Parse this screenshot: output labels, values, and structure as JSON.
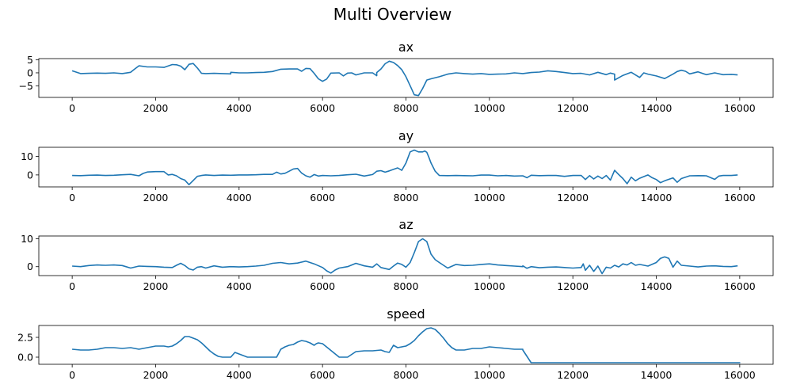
{
  "figure": {
    "title": "Multi Overview"
  },
  "style": {
    "line_color": "#1f77b4",
    "axes_color": "#000000",
    "background": "#ffffff"
  },
  "chart_data": [
    {
      "type": "line",
      "title": "ax",
      "xlabel": "",
      "ylabel": "",
      "xlim": [
        -800,
        16800
      ],
      "ylim": [
        -9.5,
        5.5
      ],
      "xticks": [
        0,
        2000,
        4000,
        6000,
        8000,
        10000,
        12000,
        14000,
        16000
      ],
      "yticks": [
        5,
        0,
        -5
      ],
      "ytick_labels": [
        "5",
        "0",
        "−5"
      ],
      "grid": false,
      "series": [
        {
          "x": [
            0,
            200,
            400,
            600,
            800,
            1000,
            1200,
            1400,
            1500,
            1600,
            1800,
            2000,
            2200,
            2400,
            2500,
            2600,
            2700,
            2800,
            2900,
            3000,
            3100,
            3200,
            3400,
            3600,
            3800,
            3800,
            4000,
            4200,
            4400,
            4600,
            4800,
            5000,
            5200,
            5400,
            5500,
            5600,
            5700,
            5800,
            5900,
            6000,
            6100,
            6200,
            6400,
            6500,
            6600,
            6700,
            6800,
            7000,
            7200,
            7300,
            7300,
            7400,
            7500,
            7600,
            7700,
            7800,
            7900,
            8000,
            8100,
            8200,
            8300,
            8400,
            8500,
            8600,
            8800,
            9000,
            9200,
            9400,
            9600,
            9800,
            10000,
            10200,
            10400,
            10600,
            10800,
            11000,
            11200,
            11400,
            11600,
            11800,
            12000,
            12200,
            12400,
            12600,
            12800,
            12900,
            13000,
            13000,
            13200,
            13400,
            13600,
            13700,
            13800,
            14000,
            14200,
            14400,
            14500,
            14600,
            14700,
            14800,
            15000,
            15200,
            15400,
            15600,
            15800,
            15950
          ],
          "y": [
            0.8,
            -0.3,
            -0.2,
            -0.1,
            -0.2,
            0,
            -0.3,
            0.2,
            1.5,
            2.7,
            2.3,
            2.3,
            2.1,
            3.2,
            3.1,
            2.6,
            1.2,
            3.3,
            3.6,
            1.9,
            -0.2,
            -0.3,
            -0.2,
            -0.3,
            -0.4,
            0.2,
            0,
            0,
            0.1,
            0.2,
            0.5,
            1.4,
            1.5,
            1.5,
            0.6,
            1.7,
            1.6,
            -0.2,
            -2.3,
            -3.3,
            -2.4,
            -0.1,
            0,
            -1.2,
            -0.1,
            0,
            -0.8,
            0,
            0,
            -1.1,
            0.1,
            1.5,
            3.5,
            4.5,
            4.0,
            2.8,
            1.2,
            -1.5,
            -5,
            -8.5,
            -8.8,
            -6,
            -2.8,
            -2.3,
            -1.5,
            -0.5,
            0,
            -0.3,
            -0.5,
            -0.3,
            -0.6,
            -0.5,
            -0.4,
            0,
            -0.3,
            0.1,
            0.3,
            0.8,
            0.5,
            0.1,
            -0.3,
            -0.2,
            -0.8,
            0.2,
            -0.7,
            -0.1,
            -0.5,
            -2.8,
            -1.0,
            0.2,
            -1.8,
            0,
            -0.5,
            -1.2,
            -2.2,
            -0.5,
            0.5,
            1.0,
            0.6,
            -0.4,
            0.4,
            -0.7,
            0,
            -0.7,
            -0.6,
            -0.8
          ]
        }
      ]
    },
    {
      "type": "line",
      "title": "ay",
      "xlabel": "",
      "ylabel": "",
      "xlim": [
        -800,
        16800
      ],
      "ylim": [
        -6.5,
        15
      ],
      "xticks": [
        0,
        2000,
        4000,
        6000,
        8000,
        10000,
        12000,
        14000,
        16000
      ],
      "yticks": [
        10,
        0
      ],
      "ytick_labels": [
        "10",
        "0"
      ],
      "grid": false,
      "series": [
        {
          "x": [
            0,
            200,
            400,
            600,
            800,
            1000,
            1200,
            1400,
            1600,
            1700,
            1800,
            2000,
            2200,
            2300,
            2400,
            2500,
            2600,
            2700,
            2800,
            2900,
            3000,
            3100,
            3200,
            3400,
            3600,
            3800,
            4000,
            4200,
            4400,
            4600,
            4800,
            4900,
            5000,
            5100,
            5200,
            5300,
            5400,
            5500,
            5600,
            5700,
            5800,
            5900,
            6000,
            6200,
            6400,
            6600,
            6800,
            7000,
            7200,
            7300,
            7400,
            7500,
            7600,
            7700,
            7800,
            7900,
            8000,
            8100,
            8200,
            8300,
            8400,
            8450,
            8500,
            8550,
            8600,
            8700,
            8800,
            9000,
            9200,
            9400,
            9600,
            9800,
            10000,
            10200,
            10400,
            10600,
            10800,
            10900,
            11000,
            11200,
            11400,
            11600,
            11800,
            12000,
            12200,
            12300,
            12400,
            12500,
            12600,
            12700,
            12800,
            12900,
            13000,
            13100,
            13200,
            13300,
            13400,
            13500,
            13600,
            13800,
            13900,
            14000,
            14100,
            14200,
            14400,
            14500,
            14600,
            14800,
            15000,
            15200,
            15400,
            15500,
            15600,
            15800,
            15950
          ],
          "y": [
            -0.3,
            -0.4,
            -0.2,
            -0.1,
            -0.3,
            -0.2,
            0.1,
            0.3,
            -0.5,
            0.8,
            1.6,
            1.8,
            1.8,
            0,
            0.3,
            -0.5,
            -2.0,
            -2.8,
            -5.3,
            -3.0,
            -0.8,
            -0.3,
            0,
            -0.3,
            -0.1,
            -0.2,
            0,
            0,
            0.1,
            0.3,
            0.3,
            1.5,
            0.5,
            0.9,
            2.0,
            3.2,
            3.5,
            1.0,
            -0.5,
            -1.2,
            0.2,
            -0.6,
            -0.3,
            -0.5,
            -0.3,
            0.1,
            0.4,
            -0.6,
            0.2,
            2.0,
            2.3,
            1.5,
            2.2,
            3.0,
            3.8,
            2.5,
            6.5,
            12.5,
            13.5,
            12.5,
            12.5,
            13.0,
            12.3,
            9.5,
            6.5,
            2.0,
            -0.3,
            -0.4,
            -0.3,
            -0.4,
            -0.5,
            -0.1,
            -0.1,
            -0.5,
            -0.3,
            -0.6,
            -0.5,
            -1.5,
            -0.2,
            -0.4,
            -0.3,
            -0.3,
            -0.8,
            -0.3,
            -0.3,
            -2.5,
            -0.4,
            -2.2,
            -0.6,
            -2.0,
            -0.3,
            -2.8,
            2.5,
            0.2,
            -2.0,
            -4.8,
            -1.2,
            -3.2,
            -1.8,
            0,
            -1.5,
            -2.5,
            -4.2,
            -3.2,
            -1.6,
            -4.0,
            -2.0,
            -0.5,
            -0.4,
            -0.5,
            -2.4,
            -0.6,
            -0.3,
            -0.3,
            0
          ]
        }
      ]
    },
    {
      "type": "line",
      "title": "az",
      "xlabel": "",
      "ylabel": "",
      "xlim": [
        -800,
        16800
      ],
      "ylim": [
        -3.2,
        11
      ],
      "xticks": [
        0,
        2000,
        4000,
        6000,
        8000,
        10000,
        12000,
        14000,
        16000
      ],
      "yticks": [
        10,
        0
      ],
      "ytick_labels": [
        "10",
        "0"
      ],
      "grid": false,
      "series": [
        {
          "x": [
            0,
            200,
            400,
            600,
            800,
            1000,
            1200,
            1400,
            1600,
            1800,
            2000,
            2200,
            2400,
            2500,
            2600,
            2700,
            2800,
            2900,
            3000,
            3100,
            3200,
            3400,
            3600,
            3800,
            4000,
            4200,
            4400,
            4600,
            4800,
            5000,
            5200,
            5400,
            5600,
            5800,
            6000,
            6100,
            6200,
            6300,
            6400,
            6600,
            6800,
            7000,
            7200,
            7300,
            7400,
            7600,
            7700,
            7800,
            7900,
            8000,
            8100,
            8200,
            8300,
            8400,
            8500,
            8600,
            8700,
            8800,
            9000,
            9200,
            9400,
            9600,
            9800,
            10000,
            10200,
            10400,
            10600,
            10800,
            10800,
            10900,
            11000,
            11200,
            11400,
            11600,
            11800,
            12000,
            12200,
            12250,
            12300,
            12400,
            12500,
            12600,
            12700,
            12800,
            12900,
            13000,
            13100,
            13200,
            13300,
            13400,
            13500,
            13600,
            13800,
            14000,
            14100,
            14200,
            14300,
            14400,
            14500,
            14600,
            14800,
            15000,
            15200,
            15400,
            15600,
            15800,
            15950
          ],
          "y": [
            0.2,
            0,
            0.4,
            0.6,
            0.5,
            0.6,
            0.4,
            -0.5,
            0.2,
            0.1,
            0,
            -0.2,
            -0.3,
            0.5,
            1.2,
            0.4,
            -0.8,
            -1.2,
            -0.2,
            0,
            -0.5,
            0.3,
            -0.2,
            0,
            -0.1,
            0,
            0.2,
            0.5,
            1.2,
            1.5,
            1.0,
            1.3,
            2.0,
            1.0,
            -0.3,
            -1.5,
            -2.3,
            -1.2,
            -0.5,
            0,
            1.2,
            0.3,
            -0.2,
            1.0,
            -0.3,
            -1.0,
            0.2,
            1.3,
            0.8,
            -0.2,
            1.5,
            5.0,
            9.0,
            10.0,
            9.0,
            4.5,
            2.5,
            1.5,
            -0.5,
            0.8,
            0.4,
            0.5,
            0.8,
            1.0,
            0.6,
            0.4,
            0.2,
            0,
            0.3,
            -0.6,
            0,
            -0.4,
            -0.2,
            -0.1,
            -0.3,
            -0.5,
            -0.3,
            1.0,
            -1.3,
            0.5,
            -1.7,
            0.2,
            -2.5,
            -0.2,
            -0.5,
            0.5,
            -0.1,
            1.0,
            0.6,
            1.5,
            0.5,
            0.8,
            0.2,
            1.5,
            3.0,
            3.5,
            3.0,
            -0.2,
            2.0,
            0.5,
            0.2,
            -0.1,
            0.2,
            0.3,
            0.1,
            0,
            0.3
          ]
        }
      ]
    },
    {
      "type": "line",
      "title": "speed",
      "xlabel": "",
      "ylabel": "",
      "xlim": [
        -800,
        16800
      ],
      "ylim": [
        -0.9,
        4.0
      ],
      "xticks": [
        0,
        2000,
        4000,
        6000,
        8000,
        10000,
        12000,
        14000,
        16000
      ],
      "yticks": [
        2.5,
        0.0
      ],
      "ytick_labels": [
        "2.5",
        "0.0"
      ],
      "grid": false,
      "series": [
        {
          "x": [
            0,
            200,
            400,
            600,
            800,
            1000,
            1200,
            1400,
            1600,
            1800,
            2000,
            2200,
            2300,
            2400,
            2500,
            2600,
            2700,
            2800,
            2900,
            3000,
            3100,
            3200,
            3300,
            3400,
            3500,
            3600,
            3700,
            3800,
            3800,
            3900,
            4000,
            4200,
            4400,
            4600,
            4700,
            4800,
            4900,
            5000,
            5100,
            5200,
            5300,
            5400,
            5500,
            5600,
            5700,
            5800,
            5850,
            5900,
            6000,
            6400,
            6500,
            6600,
            6800,
            7000,
            7200,
            7400,
            7500,
            7600,
            7700,
            7800,
            8000,
            8100,
            8200,
            8300,
            8400,
            8500,
            8600,
            8700,
            8800,
            8900,
            9000,
            9100,
            9200,
            9400,
            9600,
            9800,
            10000,
            10200,
            10400,
            10600,
            10800,
            10800,
            11000,
            12000,
            13000,
            14000,
            15000,
            16000,
            15950
          ],
          "y": [
            1.0,
            0.9,
            0.9,
            1.0,
            1.2,
            1.2,
            1.1,
            1.2,
            1.0,
            1.2,
            1.4,
            1.4,
            1.3,
            1.4,
            1.7,
            2.1,
            2.6,
            2.6,
            2.4,
            2.2,
            1.8,
            1.3,
            0.8,
            0.4,
            0.1,
            0,
            0,
            0,
            0,
            0.6,
            0.4,
            0,
            0,
            0,
            0,
            0,
            0,
            1.0,
            1.3,
            1.5,
            1.6,
            1.9,
            2.1,
            2.0,
            1.8,
            1.5,
            1.7,
            1.8,
            1.7,
            0,
            0,
            0,
            0.7,
            0.8,
            0.8,
            0.9,
            0.7,
            0.6,
            1.5,
            1.2,
            1.4,
            1.7,
            2.1,
            2.7,
            3.2,
            3.6,
            3.7,
            3.5,
            3.0,
            2.4,
            1.7,
            1.2,
            0.9,
            0.9,
            1.1,
            1.1,
            1.3,
            1.2,
            1.1,
            1.0,
            1.0,
            0.9,
            -0.7,
            -0.7,
            -0.7,
            -0.7,
            -0.7,
            -0.7,
            -0.7
          ]
        }
      ]
    }
  ]
}
